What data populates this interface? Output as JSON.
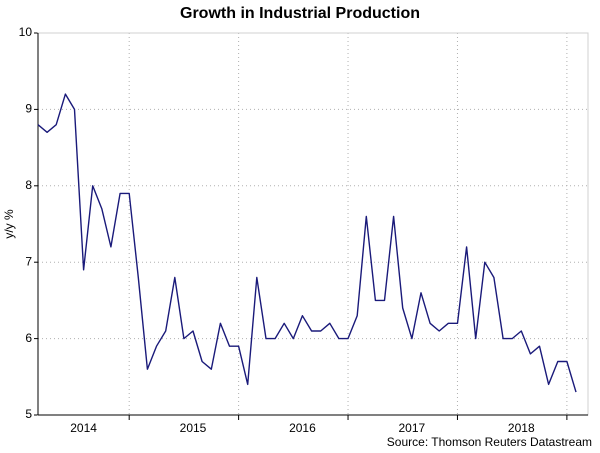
{
  "chart_data": {
    "type": "line",
    "title": "Growth in Industrial Production",
    "y_label": "y/y %",
    "source": "Source: Thomson Reuters Datastream",
    "categories": [
      null,
      null,
      null,
      null,
      null,
      "2014",
      null,
      null,
      null,
      null,
      null,
      null,
      null,
      null,
      null,
      null,
      null,
      "2015",
      null,
      null,
      null,
      null,
      null,
      null,
      null,
      null,
      null,
      null,
      null,
      "2016",
      null,
      null,
      null,
      null,
      null,
      null,
      null,
      null,
      null,
      null,
      null,
      "2017",
      null,
      null,
      null,
      null,
      null,
      null,
      null,
      null,
      null,
      null,
      null,
      "2018",
      null,
      null,
      null,
      null,
      null,
      null
    ],
    "series": [
      {
        "name": "Industrial Production",
        "color": "#1a1a7a",
        "values": [
          8.8,
          8.7,
          8.8,
          9.2,
          9.0,
          6.9,
          8.0,
          7.7,
          7.2,
          7.9,
          7.9,
          6.8,
          5.6,
          5.9,
          6.1,
          6.8,
          6.0,
          6.1,
          5.7,
          5.6,
          6.2,
          5.9,
          5.9,
          5.4,
          6.8,
          6.0,
          6.0,
          6.2,
          6.0,
          6.3,
          6.1,
          6.1,
          6.2,
          6.0,
          6.0,
          6.3,
          7.6,
          6.5,
          6.5,
          7.6,
          6.4,
          6.0,
          6.6,
          6.2,
          6.1,
          6.2,
          6.2,
          7.2,
          6.0,
          7.0,
          6.8,
          6.0,
          6.0,
          6.1,
          5.8,
          5.9,
          5.4,
          5.7,
          5.7,
          5.3
        ]
      }
    ],
    "ylim": [
      5,
      10
    ],
    "yticks": [
      5,
      6,
      7,
      8,
      9,
      10
    ],
    "grid": true
  }
}
